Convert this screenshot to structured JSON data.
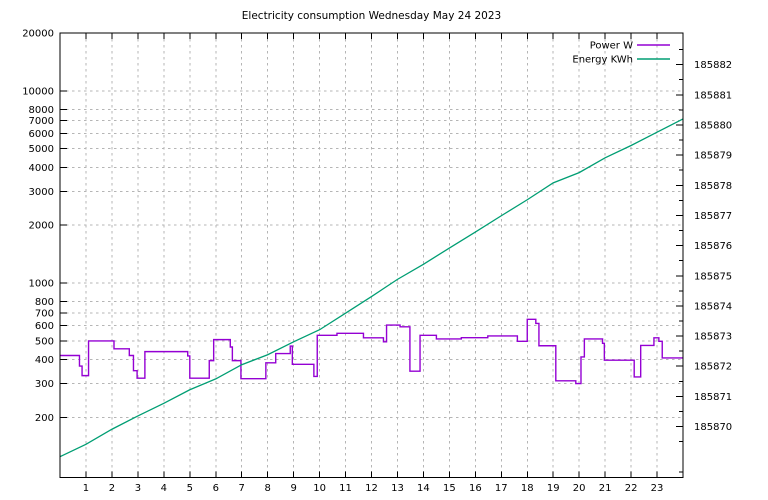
{
  "title": "Electricity consumption Wednesday May 24 2023",
  "legend": {
    "position": "top-right",
    "items": [
      {
        "label": "Power W",
        "color": "#9400d3"
      },
      {
        "label": "Energy KWh",
        "color": "#009e73"
      }
    ]
  },
  "chart_data": {
    "type": "line",
    "title": "Electricity consumption Wednesday May 24 2023",
    "grid": true,
    "background": "#ffffff",
    "border_color": "#000000",
    "grid_color": "#b5b5b5",
    "x_range": [
      0,
      24
    ],
    "x_ticks": [
      1,
      2,
      3,
      4,
      5,
      6,
      7,
      8,
      9,
      10,
      11,
      12,
      13,
      14,
      15,
      16,
      17,
      18,
      19,
      20,
      21,
      22,
      23
    ],
    "y_left": {
      "scale": "log",
      "range": [
        97.4,
        20000
      ],
      "tick_labels": [
        20000,
        10000,
        8000,
        7000,
        6000,
        5000,
        4000,
        3000,
        2000,
        1000,
        800,
        700,
        600,
        500,
        400,
        300,
        200
      ]
    },
    "y_right": {
      "scale": "linear",
      "range": [
        185868.31,
        185883.05
      ],
      "tick_labels": [
        185882,
        185881,
        185880,
        185879,
        185878,
        185877,
        185876,
        185875,
        185874,
        185873,
        185872,
        185871,
        185870
      ],
      "minor_tick_step": 0.5
    },
    "series": [
      {
        "name": "Power W",
        "axis": "left",
        "style": "step",
        "unit": "W",
        "color": "#9400d3",
        "points": [
          [
            0.0,
            420
          ],
          [
            0.75,
            370
          ],
          [
            0.85,
            330
          ],
          [
            1.1,
            500
          ],
          [
            2.08,
            455
          ],
          [
            2.67,
            420
          ],
          [
            2.83,
            350
          ],
          [
            2.97,
            320
          ],
          [
            3.27,
            440
          ],
          [
            4.92,
            418
          ],
          [
            5.0,
            320
          ],
          [
            5.75,
            395
          ],
          [
            5.92,
            508
          ],
          [
            6.56,
            465
          ],
          [
            6.64,
            395
          ],
          [
            6.97,
            318
          ],
          [
            7.93,
            385
          ],
          [
            8.31,
            430
          ],
          [
            8.87,
            470
          ],
          [
            8.95,
            378
          ],
          [
            9.78,
            327
          ],
          [
            9.91,
            535
          ],
          [
            10.67,
            548
          ],
          [
            11.69,
            519
          ],
          [
            12.46,
            495
          ],
          [
            12.58,
            605
          ],
          [
            13.1,
            592
          ],
          [
            13.48,
            348
          ],
          [
            13.87,
            535
          ],
          [
            14.5,
            512
          ],
          [
            15.46,
            520
          ],
          [
            16.48,
            531
          ],
          [
            17.62,
            498
          ],
          [
            18.0,
            648
          ],
          [
            18.33,
            617
          ],
          [
            18.45,
            472
          ],
          [
            19.1,
            310
          ],
          [
            19.87,
            300
          ],
          [
            20.07,
            413
          ],
          [
            20.2,
            512
          ],
          [
            20.9,
            486
          ],
          [
            20.97,
            397
          ],
          [
            22.12,
            325
          ],
          [
            22.37,
            474
          ],
          [
            22.88,
            519
          ],
          [
            23.07,
            498
          ],
          [
            23.2,
            408
          ]
        ]
      },
      {
        "name": "Energy KWh",
        "axis": "right",
        "style": "line",
        "unit": "KWh",
        "color": "#009e73",
        "points": [
          [
            0,
            185869.0
          ],
          [
            1,
            185869.41
          ],
          [
            2,
            185869.91
          ],
          [
            3,
            185870.35
          ],
          [
            4,
            185870.77
          ],
          [
            5,
            185871.22
          ],
          [
            6,
            185871.58
          ],
          [
            7,
            185872.05
          ],
          [
            8,
            185872.38
          ],
          [
            9,
            185872.81
          ],
          [
            10,
            185873.21
          ],
          [
            11,
            185873.76
          ],
          [
            12,
            185874.31
          ],
          [
            13,
            185874.88
          ],
          [
            14,
            185875.38
          ],
          [
            15,
            185875.92
          ],
          [
            16,
            185876.45
          ],
          [
            17,
            185876.99
          ],
          [
            18,
            185877.52
          ],
          [
            19,
            185878.08
          ],
          [
            20,
            185878.42
          ],
          [
            21,
            185878.91
          ],
          [
            22,
            185879.32
          ],
          [
            23,
            185879.76
          ],
          [
            24,
            185880.2
          ]
        ]
      }
    ]
  }
}
